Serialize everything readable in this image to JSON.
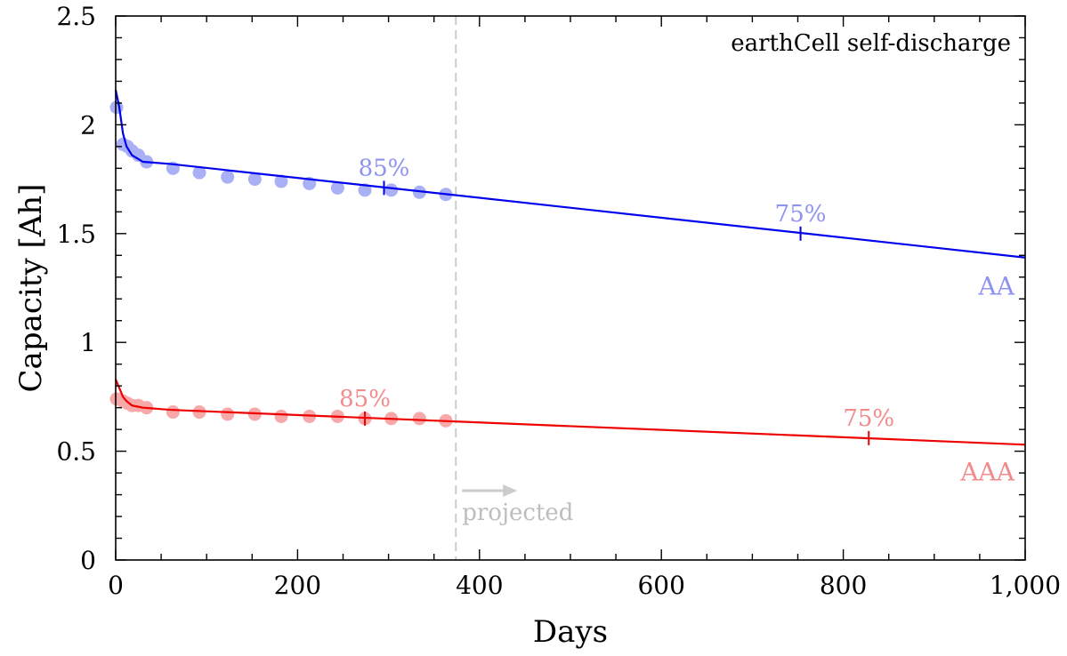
{
  "chart_data": {
    "type": "scatter",
    "title": "earthCell self-discharge",
    "xlabel": "Days",
    "ylabel": "Capacity [Ah]",
    "xlim": [
      0,
      1000
    ],
    "ylim": [
      0,
      2.5
    ],
    "x_ticks": [
      0,
      200,
      400,
      600,
      800,
      1000
    ],
    "x_tick_labels": [
      "0",
      "200",
      "400",
      "600",
      "800",
      "1,000"
    ],
    "y_ticks": [
      0,
      0.5,
      1,
      1.5,
      2,
      2.5
    ],
    "y_tick_labels": [
      "0",
      "0.5",
      "1",
      "1.5",
      "2",
      "2.5"
    ],
    "grid": false,
    "series": [
      {
        "name": "AA",
        "line_color": "#0000ee",
        "point_color": "#aab0f5",
        "label_color": "#8f93f0",
        "points": [
          [
            1,
            2.08
          ],
          [
            8,
            1.91
          ],
          [
            13,
            1.9
          ],
          [
            18,
            1.88
          ],
          [
            25,
            1.86
          ],
          [
            34,
            1.83
          ],
          [
            63,
            1.8
          ],
          [
            92,
            1.78
          ],
          [
            123,
            1.76
          ],
          [
            153,
            1.75
          ],
          [
            182,
            1.74
          ],
          [
            213,
            1.73
          ],
          [
            244,
            1.71
          ],
          [
            274,
            1.7
          ],
          [
            303,
            1.7
          ],
          [
            334,
            1.69
          ],
          [
            363,
            1.68
          ]
        ],
        "fit": [
          [
            0,
            2.16
          ],
          [
            4,
            2.08
          ],
          [
            8,
            1.96
          ],
          [
            12,
            1.9
          ],
          [
            18,
            1.86
          ],
          [
            30,
            1.83
          ],
          [
            60,
            1.82
          ],
          [
            1000,
            1.39
          ]
        ],
        "markers": [
          {
            "x": 295,
            "y": 1.71,
            "label": "85%"
          },
          {
            "x": 753,
            "y": 1.5,
            "label": "75%"
          }
        ]
      },
      {
        "name": "AAA",
        "line_color": "#ee0000",
        "point_color": "#f7a8a8",
        "label_color": "#f28b8b",
        "points": [
          [
            1,
            0.74
          ],
          [
            8,
            0.73
          ],
          [
            13,
            0.72
          ],
          [
            18,
            0.71
          ],
          [
            25,
            0.71
          ],
          [
            34,
            0.7
          ],
          [
            63,
            0.68
          ],
          [
            92,
            0.68
          ],
          [
            123,
            0.67
          ],
          [
            153,
            0.67
          ],
          [
            182,
            0.66
          ],
          [
            213,
            0.66
          ],
          [
            244,
            0.66
          ],
          [
            274,
            0.65
          ],
          [
            303,
            0.65
          ],
          [
            334,
            0.65
          ],
          [
            363,
            0.64
          ]
        ],
        "fit": [
          [
            0,
            0.83
          ],
          [
            4,
            0.79
          ],
          [
            8,
            0.75
          ],
          [
            12,
            0.73
          ],
          [
            18,
            0.71
          ],
          [
            30,
            0.7
          ],
          [
            60,
            0.69
          ],
          [
            1000,
            0.53
          ]
        ],
        "markers": [
          {
            "x": 274,
            "y": 0.65,
            "label": "85%"
          },
          {
            "x": 828,
            "y": 0.56,
            "label": "75%"
          }
        ]
      }
    ],
    "projection": {
      "x": 374,
      "label": "projected",
      "color": "#cccccc"
    }
  }
}
